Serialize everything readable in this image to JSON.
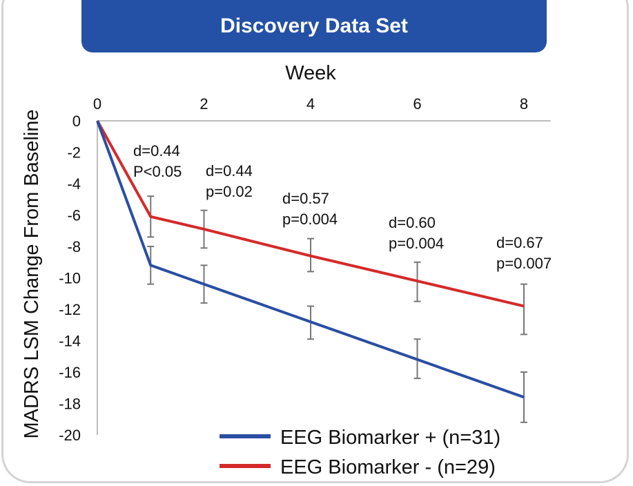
{
  "chart_data": {
    "type": "line",
    "title": "Discovery Data Set",
    "xlabel": "Week",
    "ylabel": "MADRS LSM Change From Baseline",
    "x": [
      0,
      1,
      2,
      4,
      6,
      8
    ],
    "xticks": [
      "0",
      "2",
      "4",
      "6",
      "8"
    ],
    "xtick_values": [
      0,
      2,
      4,
      6,
      8
    ],
    "xlim": [
      0,
      8.5
    ],
    "ylim": [
      -20,
      0
    ],
    "yticks": [
      "0",
      "-2",
      "-4",
      "-6",
      "-8",
      "-10",
      "-12",
      "-14",
      "-16",
      "-18",
      "-20"
    ],
    "ytick_values": [
      0,
      -2,
      -4,
      -6,
      -8,
      -10,
      -12,
      -14,
      -16,
      -18,
      -20
    ],
    "series": [
      {
        "name": "EEG Biomarker + (n=31)",
        "color": "#2a4ea3",
        "values": [
          0,
          -9.2,
          -10.4,
          -12.8,
          -15.2,
          -17.6
        ],
        "err_lower": [
          null,
          -10.4,
          -11.6,
          -13.9,
          -16.4,
          -19.2
        ],
        "err_upper": [
          null,
          -8.0,
          -9.2,
          -11.8,
          -13.9,
          -16.0
        ]
      },
      {
        "name": "EEG Biomarker - (n=29)",
        "color": "#d42a2a",
        "values": [
          0,
          -6.1,
          -6.9,
          -8.6,
          -10.2,
          -11.8
        ],
        "err_lower": [
          null,
          -7.4,
          -8.1,
          -9.6,
          -11.5,
          -13.6
        ],
        "err_upper": [
          null,
          -4.8,
          -5.7,
          -7.5,
          -9.0,
          -10.4
        ]
      }
    ],
    "annotations": [
      {
        "week": 1,
        "d": "d=0.44",
        "p": "P<0.05"
      },
      {
        "week": 2,
        "d": "d=0.44",
        "p": "p=0.02"
      },
      {
        "week": 4,
        "d": "d=0.57",
        "p": "p=0.004"
      },
      {
        "week": 6,
        "d": "d=0.60",
        "p": "p=0.004"
      },
      {
        "week": 8,
        "d": "d=0.67",
        "p": "p=0.007"
      }
    ],
    "legend_position": "bottom-right",
    "grid": false
  }
}
